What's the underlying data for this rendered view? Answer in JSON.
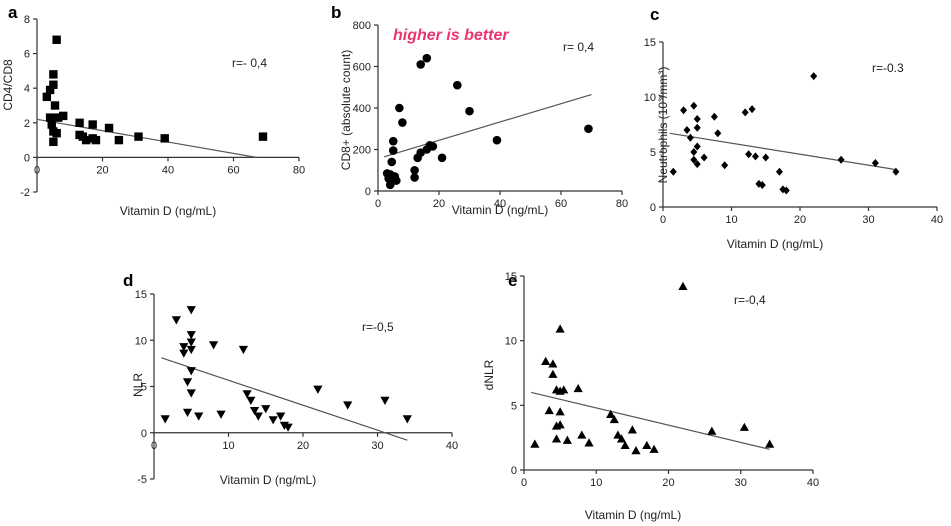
{
  "chart_data": [
    {
      "panel": "a",
      "type": "scatter",
      "marker": "square",
      "xlabel": "Vitamin D (ng/mL)",
      "ylabel": "CD4/CD8",
      "xlim": [
        0,
        80
      ],
      "ylim": [
        -2,
        8
      ],
      "xticks": [
        0,
        20,
        40,
        60,
        80
      ],
      "yticks": [
        -2,
        0,
        2,
        4,
        6,
        8
      ],
      "correlation": "r=- 0,4",
      "regression": [
        [
          0,
          2.2
        ],
        [
          67,
          0
        ]
      ],
      "points": [
        {
          "x": 3,
          "y": 3.5
        },
        {
          "x": 4,
          "y": 3.9
        },
        {
          "x": 4,
          "y": 2.3
        },
        {
          "x": 4.5,
          "y": 1.9
        },
        {
          "x": 5,
          "y": 4.2
        },
        {
          "x": 5,
          "y": 4.8
        },
        {
          "x": 5,
          "y": 1.5
        },
        {
          "x": 5,
          "y": 0.9
        },
        {
          "x": 5.5,
          "y": 3.0
        },
        {
          "x": 6,
          "y": 6.8
        },
        {
          "x": 6,
          "y": 1.4
        },
        {
          "x": 6.5,
          "y": 2.3
        },
        {
          "x": 8,
          "y": 2.4
        },
        {
          "x": 13,
          "y": 2.0
        },
        {
          "x": 13,
          "y": 1.3
        },
        {
          "x": 14,
          "y": 1.2
        },
        {
          "x": 15,
          "y": 1.0
        },
        {
          "x": 17,
          "y": 1.9
        },
        {
          "x": 17,
          "y": 1.1
        },
        {
          "x": 18,
          "y": 1.0
        },
        {
          "x": 22,
          "y": 1.7
        },
        {
          "x": 25,
          "y": 1.0
        },
        {
          "x": 31,
          "y": 1.2
        },
        {
          "x": 39,
          "y": 1.1
        },
        {
          "x": 69,
          "y": 1.2
        }
      ]
    },
    {
      "panel": "b",
      "type": "scatter",
      "marker": "circle",
      "xlabel": "Vitamin D (ng/mL)",
      "ylabel": "CD8+ (absolute count)",
      "xlim": [
        0,
        80
      ],
      "ylim": [
        0,
        800
      ],
      "xticks": [
        0,
        20,
        40,
        60,
        80
      ],
      "yticks": [
        0,
        200,
        400,
        600,
        800
      ],
      "correlation": "r= 0,4",
      "note": "higher is better",
      "note_color": "#e8366e",
      "regression": [
        [
          2,
          165
        ],
        [
          70,
          465
        ]
      ],
      "points": [
        {
          "x": 3,
          "y": 85
        },
        {
          "x": 3.5,
          "y": 60
        },
        {
          "x": 4,
          "y": 30
        },
        {
          "x": 4,
          "y": 80
        },
        {
          "x": 4.5,
          "y": 140
        },
        {
          "x": 5,
          "y": 195
        },
        {
          "x": 5,
          "y": 240
        },
        {
          "x": 5,
          "y": 50
        },
        {
          "x": 5.5,
          "y": 70
        },
        {
          "x": 6,
          "y": 50
        },
        {
          "x": 7,
          "y": 400
        },
        {
          "x": 8,
          "y": 330
        },
        {
          "x": 12,
          "y": 65
        },
        {
          "x": 12,
          "y": 100
        },
        {
          "x": 13,
          "y": 160
        },
        {
          "x": 14,
          "y": 185
        },
        {
          "x": 14,
          "y": 610
        },
        {
          "x": 16,
          "y": 640
        },
        {
          "x": 16,
          "y": 200
        },
        {
          "x": 17,
          "y": 220
        },
        {
          "x": 18,
          "y": 215
        },
        {
          "x": 21,
          "y": 160
        },
        {
          "x": 26,
          "y": 510
        },
        {
          "x": 30,
          "y": 385
        },
        {
          "x": 39,
          "y": 245
        },
        {
          "x": 69,
          "y": 300
        }
      ]
    },
    {
      "panel": "c",
      "type": "scatter",
      "marker": "diamond",
      "xlabel": "Vitamin D (ng/mL)",
      "ylabel": "Neutrophils (10³/mm³)",
      "xlim": [
        0,
        40
      ],
      "ylim": [
        0,
        15
      ],
      "xticks": [
        0,
        10,
        20,
        30,
        40
      ],
      "yticks": [
        0,
        5,
        10,
        15
      ],
      "correlation": "r=-0.3",
      "regression": [
        [
          1,
          6.7
        ],
        [
          34,
          3.4
        ]
      ],
      "points": [
        {
          "x": 1.5,
          "y": 3.2
        },
        {
          "x": 3,
          "y": 8.8
        },
        {
          "x": 3.5,
          "y": 7.0
        },
        {
          "x": 4,
          "y": 6.3
        },
        {
          "x": 4.5,
          "y": 9.2
        },
        {
          "x": 4.5,
          "y": 5.0
        },
        {
          "x": 4.5,
          "y": 4.3
        },
        {
          "x": 5,
          "y": 7.2
        },
        {
          "x": 5,
          "y": 8.0
        },
        {
          "x": 5,
          "y": 5.5
        },
        {
          "x": 5,
          "y": 3.9
        },
        {
          "x": 6,
          "y": 4.5
        },
        {
          "x": 7.5,
          "y": 8.2
        },
        {
          "x": 8,
          "y": 6.7
        },
        {
          "x": 9,
          "y": 3.8
        },
        {
          "x": 12,
          "y": 8.6
        },
        {
          "x": 12.5,
          "y": 4.8
        },
        {
          "x": 13,
          "y": 8.9
        },
        {
          "x": 13.5,
          "y": 4.6
        },
        {
          "x": 14,
          "y": 2.1
        },
        {
          "x": 14.5,
          "y": 2.0
        },
        {
          "x": 15,
          "y": 4.5
        },
        {
          "x": 17,
          "y": 3.2
        },
        {
          "x": 17.5,
          "y": 1.6
        },
        {
          "x": 18,
          "y": 1.5
        },
        {
          "x": 22,
          "y": 11.9
        },
        {
          "x": 26,
          "y": 4.3
        },
        {
          "x": 31,
          "y": 4.0
        },
        {
          "x": 34,
          "y": 3.2
        }
      ]
    },
    {
      "panel": "d",
      "type": "scatter",
      "marker": "triangle-down",
      "xlabel": "Vitamin D (ng/mL)",
      "ylabel": "NLR",
      "xlim": [
        0,
        40
      ],
      "ylim": [
        -5,
        15
      ],
      "xticks": [
        0,
        10,
        20,
        30,
        40
      ],
      "yticks": [
        -5,
        0,
        5,
        10,
        15
      ],
      "correlation": "r=-0,5",
      "regression": [
        [
          1,
          8.1
        ],
        [
          34,
          -0.8
        ]
      ],
      "points": [
        {
          "x": 1.5,
          "y": 1.5
        },
        {
          "x": 3,
          "y": 12.2
        },
        {
          "x": 4,
          "y": 9.3
        },
        {
          "x": 4,
          "y": 8.6
        },
        {
          "x": 4.5,
          "y": 2.2
        },
        {
          "x": 4.5,
          "y": 5.5
        },
        {
          "x": 5,
          "y": 13.3
        },
        {
          "x": 5,
          "y": 10.6
        },
        {
          "x": 5,
          "y": 9.8
        },
        {
          "x": 5,
          "y": 9.0
        },
        {
          "x": 5,
          "y": 6.7
        },
        {
          "x": 5,
          "y": 4.3
        },
        {
          "x": 6,
          "y": 1.8
        },
        {
          "x": 8,
          "y": 9.5
        },
        {
          "x": 9,
          "y": 2.0
        },
        {
          "x": 12,
          "y": 9.0
        },
        {
          "x": 12.5,
          "y": 4.2
        },
        {
          "x": 13,
          "y": 3.5
        },
        {
          "x": 13.5,
          "y": 2.4
        },
        {
          "x": 14,
          "y": 1.8
        },
        {
          "x": 15,
          "y": 2.6
        },
        {
          "x": 16,
          "y": 1.4
        },
        {
          "x": 17,
          "y": 1.8
        },
        {
          "x": 17.5,
          "y": 0.8
        },
        {
          "x": 18,
          "y": 0.6
        },
        {
          "x": 22,
          "y": 4.7
        },
        {
          "x": 26,
          "y": 3.0
        },
        {
          "x": 31,
          "y": 3.5
        },
        {
          "x": 34,
          "y": 1.5
        }
      ]
    },
    {
      "panel": "e",
      "type": "scatter",
      "marker": "triangle-up",
      "xlabel": "Vitamin D (ng/mL)",
      "ylabel": "dNLR",
      "xlim": [
        0,
        40
      ],
      "ylim": [
        0,
        15
      ],
      "xticks": [
        0,
        10,
        20,
        30,
        40
      ],
      "yticks": [
        0,
        5,
        10,
        15
      ],
      "correlation": "r=-0,4",
      "regression": [
        [
          1,
          6.0
        ],
        [
          34,
          1.6
        ]
      ],
      "points": [
        {
          "x": 1.5,
          "y": 2.0
        },
        {
          "x": 3,
          "y": 8.4
        },
        {
          "x": 3.5,
          "y": 4.6
        },
        {
          "x": 4,
          "y": 8.2
        },
        {
          "x": 4,
          "y": 7.4
        },
        {
          "x": 4.5,
          "y": 6.2
        },
        {
          "x": 4.5,
          "y": 3.4
        },
        {
          "x": 4.5,
          "y": 2.4
        },
        {
          "x": 5,
          "y": 10.9
        },
        {
          "x": 5,
          "y": 6.1
        },
        {
          "x": 5,
          "y": 4.5
        },
        {
          "x": 5,
          "y": 3.5
        },
        {
          "x": 5.5,
          "y": 6.2
        },
        {
          "x": 6,
          "y": 2.3
        },
        {
          "x": 7.5,
          "y": 6.3
        },
        {
          "x": 8,
          "y": 2.7
        },
        {
          "x": 9,
          "y": 2.1
        },
        {
          "x": 12,
          "y": 4.3
        },
        {
          "x": 12.5,
          "y": 3.9
        },
        {
          "x": 13,
          "y": 2.7
        },
        {
          "x": 13.5,
          "y": 2.4
        },
        {
          "x": 14,
          "y": 1.9
        },
        {
          "x": 15,
          "y": 3.1
        },
        {
          "x": 15.5,
          "y": 1.5
        },
        {
          "x": 17,
          "y": 1.9
        },
        {
          "x": 18,
          "y": 1.6
        },
        {
          "x": 22,
          "y": 14.2
        },
        {
          "x": 26,
          "y": 3.0
        },
        {
          "x": 30.5,
          "y": 3.3
        },
        {
          "x": 34,
          "y": 2.0
        }
      ]
    }
  ]
}
